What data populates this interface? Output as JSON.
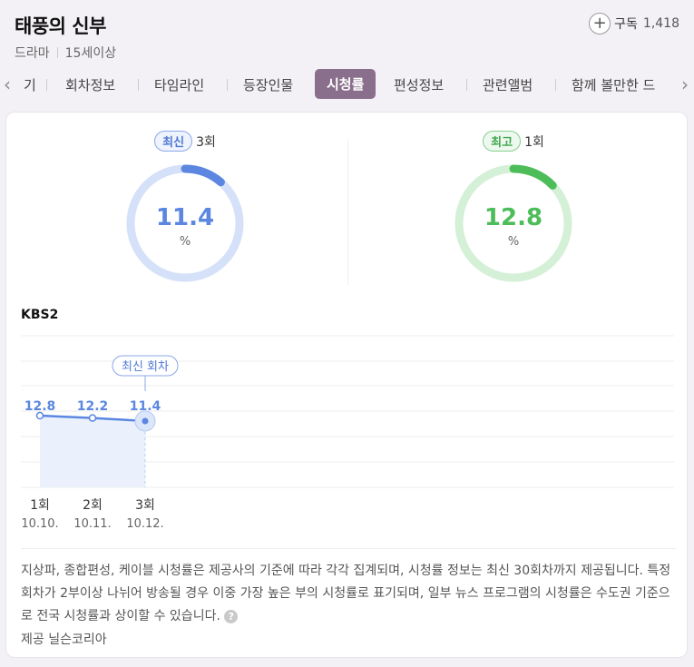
{
  "header": {
    "title": "태풍의 신부",
    "genre": "드라마",
    "rating": "15세이상",
    "subscribe_label": "구독",
    "subscribe_count": "1,418"
  },
  "tabs": [
    {
      "label": "기"
    },
    {
      "label": "회차정보"
    },
    {
      "label": "타임라인"
    },
    {
      "label": "등장인물"
    },
    {
      "label": "시청률",
      "active": true
    },
    {
      "label": "편성정보"
    },
    {
      "label": "관련앨범"
    },
    {
      "label": "함께 볼만한 드"
    }
  ],
  "gauges": {
    "latest": {
      "badge": "최신",
      "episode": "3회",
      "value": "11.4",
      "unit": "%",
      "color": "#5b87e0",
      "track": "#d5e1f8",
      "fraction": 0.114
    },
    "highest": {
      "badge": "최고",
      "episode": "1회",
      "value": "12.8",
      "unit": "%",
      "color": "#4dbd59",
      "track": "#d4f0d6",
      "fraction": 0.128
    }
  },
  "channel": "KBS2",
  "chart_data": {
    "type": "line",
    "x": [
      "1회",
      "2회",
      "3회"
    ],
    "dates": [
      "10.10.",
      "10.11.",
      "10.12."
    ],
    "values": [
      12.8,
      12.2,
      11.4
    ],
    "value_labels": [
      "12.8",
      "12.2",
      "11.4"
    ],
    "latest_label": "최신 회차",
    "color": "#5b87e0"
  },
  "footnote": {
    "text": "지상파, 종합편성, 케이블 시청률은 제공사의 기준에 따라 각각 집계되며, 시청률 정보는 최신 30회차까지 제공됩니다. 특정 회차가 2부이상 나뉘어 방송될 경우 이중 가장 높은 부의 시청률로 표기되며, 일부 뉴스 프로그램의 시청률은 수도권 기준으로 전국 시청률과 상이할 수 있습니다.",
    "help_icon": "?",
    "provider": "제공 닐슨코리아"
  }
}
